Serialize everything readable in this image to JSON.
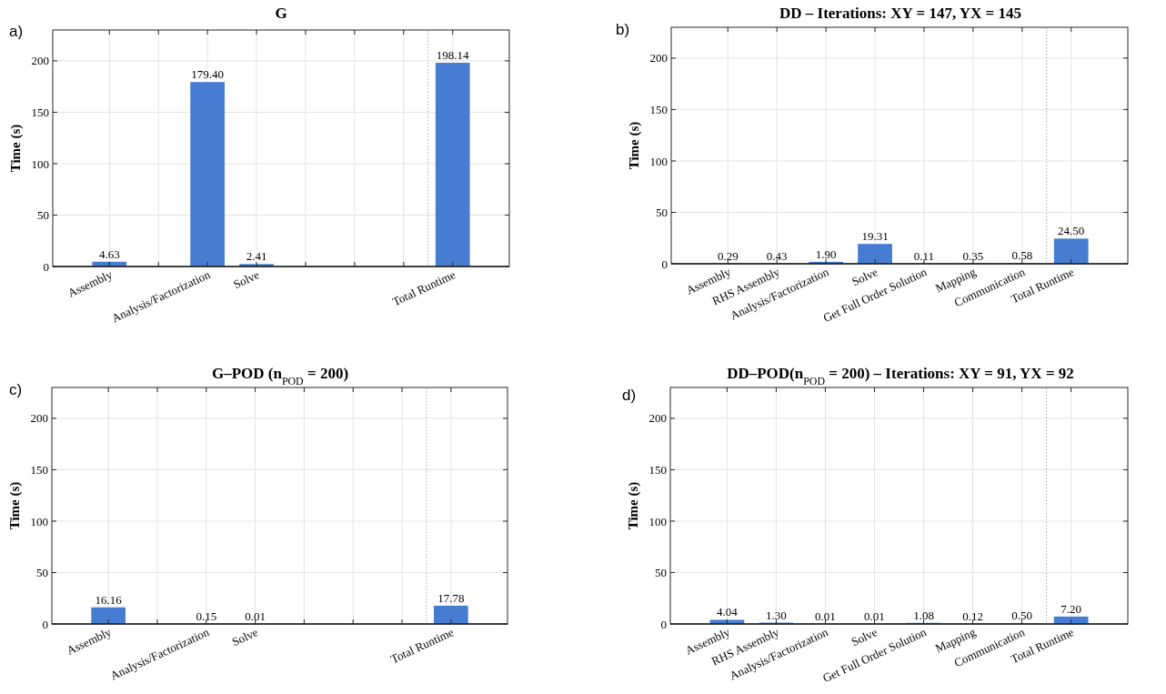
{
  "chart_data": [
    {
      "type": "bar",
      "title": "G",
      "ylabel": "Time (s)",
      "annotations": [
        "a)"
      ],
      "categories": [
        "Assembly",
        null,
        "Analysis/Factorization",
        "Solve",
        null,
        null,
        null,
        "Total Runtime"
      ],
      "values": [
        4.63,
        null,
        179.4,
        2.41,
        null,
        null,
        null,
        198.14
      ],
      "value_labels": [
        "4.63",
        null,
        "179.40",
        "2.41",
        null,
        null,
        null,
        "198.14"
      ],
      "color": "#467dd2",
      "ylim": [
        0,
        230
      ],
      "yticks": [
        0,
        50,
        100,
        150,
        200
      ],
      "grid": true
    },
    {
      "type": "bar",
      "title": "DD – Iterations: XY = 147, YX = 145",
      "ylabel": "Time (s)",
      "annotations": [
        "b)"
      ],
      "categories": [
        "Assembly",
        "RHS Assembly",
        "Analysis/Factorization",
        "Solve",
        "Get Full Order Solution",
        "Mapping",
        "Communication",
        "Total Runtime"
      ],
      "values": [
        0.29,
        0.43,
        1.9,
        19.31,
        0.11,
        0.35,
        0.58,
        24.5
      ],
      "value_labels": [
        "0.29",
        "0.43",
        "1.90",
        "19.31",
        "0.11",
        "0.35",
        "0.58",
        "24.50"
      ],
      "color": "#467dd2",
      "ylim": [
        0,
        230
      ],
      "yticks": [
        0,
        50,
        100,
        150,
        200
      ],
      "grid": true
    },
    {
      "type": "bar",
      "title": "G–POD (n$_{POD}$ = 200)",
      "ylabel": "Time (s)",
      "annotations": [
        "c)"
      ],
      "categories": [
        "Assembly",
        null,
        "Analysis/Factorization",
        "Solve",
        null,
        null,
        null,
        "Total Runtime"
      ],
      "values": [
        16.16,
        null,
        0.15,
        0.01,
        null,
        null,
        null,
        17.78
      ],
      "value_labels": [
        "16.16",
        null,
        "0.15",
        "0.01",
        null,
        null,
        null,
        "17.78"
      ],
      "color": "#467dd2",
      "ylim": [
        0,
        230
      ],
      "yticks": [
        0,
        50,
        100,
        150,
        200
      ],
      "grid": true
    },
    {
      "type": "bar",
      "title": "DD–POD(n$_{POD}$ = 200) – Iterations: XY = 91, YX = 92",
      "ylabel": "Time (s)",
      "annotations": [
        "d)"
      ],
      "categories": [
        "Assembly",
        "RHS Assembly",
        "Analysis/Factorization",
        "Solve",
        "Get Full Order Solution",
        "Mapping",
        "Communication",
        "Total Runtime"
      ],
      "values": [
        4.04,
        1.3,
        0.01,
        0.01,
        1.08,
        0.12,
        0.5,
        7.2
      ],
      "value_labels": [
        "4.04",
        "1.30",
        "0.01",
        "0.01",
        "1.08",
        "0.12",
        "0.50",
        "7.20"
      ],
      "color": "#467dd2",
      "ylim": [
        0,
        230
      ],
      "yticks": [
        0,
        50,
        100,
        150,
        200
      ],
      "grid": true
    }
  ]
}
